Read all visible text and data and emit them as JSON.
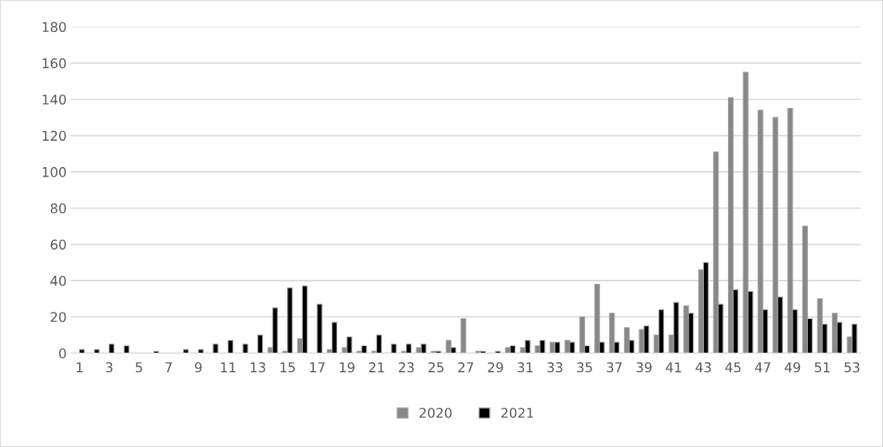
{
  "chart_data": {
    "type": "bar",
    "categories": [
      "1",
      null,
      "3",
      null,
      "5",
      null,
      "7",
      null,
      "9",
      null,
      "11",
      null,
      "13",
      null,
      "15",
      null,
      "17",
      null,
      "19",
      null,
      "21",
      null,
      "23",
      null,
      "25",
      null,
      "27",
      null,
      "29",
      null,
      "31",
      null,
      "33",
      null,
      "35",
      null,
      "37",
      null,
      "39",
      null,
      "41",
      null,
      "43",
      null,
      "45",
      null,
      "47",
      null,
      "49",
      null,
      "51",
      null,
      "53"
    ],
    "series": [
      {
        "name": "2020",
        "color": "#888888",
        "values": [
          0,
          0,
          0,
          0,
          0,
          0,
          0,
          0,
          0,
          0,
          0,
          0,
          0,
          3,
          1,
          8,
          0,
          2,
          3,
          1,
          1,
          0,
          1,
          3,
          1,
          7,
          19,
          1,
          0,
          3,
          3,
          4,
          6,
          7,
          20,
          38,
          22,
          14,
          13,
          10,
          10,
          26,
          46,
          111,
          141,
          155,
          134,
          130,
          135,
          70,
          30,
          22,
          9
        ]
      },
      {
        "name": "2021",
        "color": "#000000",
        "values": [
          2,
          2,
          5,
          4,
          0,
          1,
          0,
          2,
          2,
          5,
          7,
          5,
          10,
          25,
          36,
          37,
          27,
          17,
          9,
          4,
          10,
          5,
          5,
          5,
          1,
          3,
          0,
          1,
          1,
          4,
          7,
          7,
          6,
          6,
          4,
          6,
          6,
          7,
          15,
          24,
          28,
          22,
          50,
          27,
          35,
          34,
          24,
          31,
          24,
          19,
          16,
          17,
          16
        ]
      }
    ],
    "ylim": [
      0,
      180
    ],
    "yticks": [
      0,
      20,
      40,
      60,
      80,
      100,
      120,
      140,
      160,
      180
    ],
    "grid": "y",
    "legend": "bottom"
  }
}
